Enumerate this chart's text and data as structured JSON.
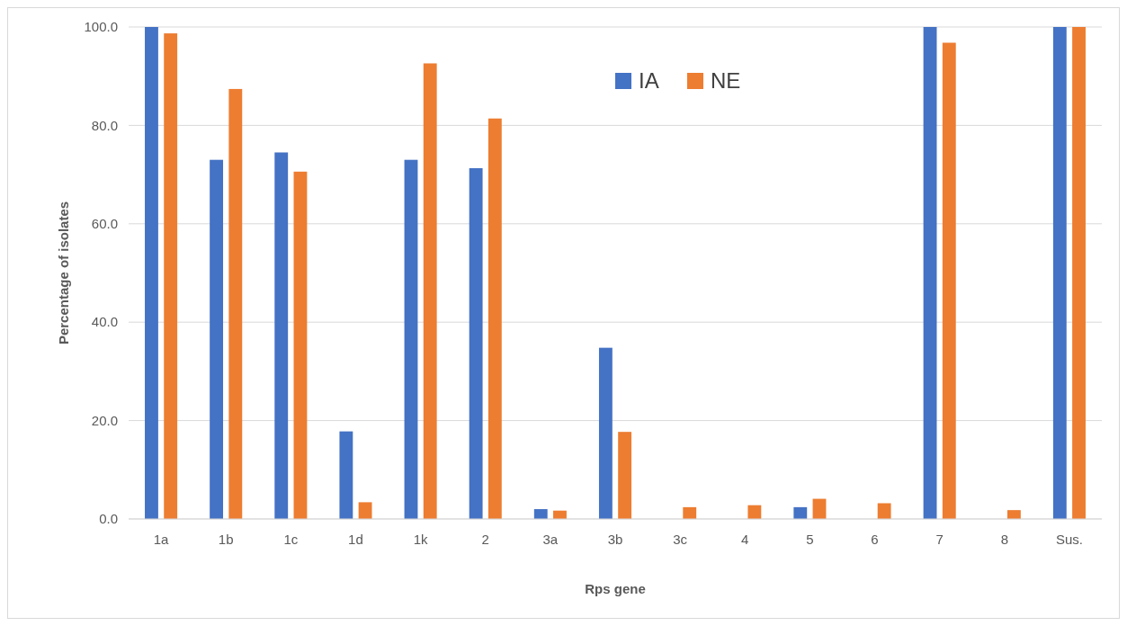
{
  "chart_data": {
    "type": "bar",
    "xlabel": "Rps gene",
    "ylabel": "Percentage of isolates",
    "categories": [
      "1a",
      "1b",
      "1c",
      "1d",
      "1k",
      "2",
      "3a",
      "3b",
      "3c",
      "4",
      "5",
      "6",
      "7",
      "8",
      "Sus."
    ],
    "series": [
      {
        "name": "IA",
        "color": "#4472c4",
        "values": [
          100,
          73.0,
          74.5,
          17.8,
          73.0,
          71.3,
          2.0,
          34.8,
          0,
          0,
          2.4,
          0,
          100,
          0,
          100
        ]
      },
      {
        "name": "NE",
        "color": "#ed7d31",
        "values": [
          98.7,
          87.4,
          70.6,
          3.4,
          92.6,
          81.4,
          1.7,
          17.7,
          2.4,
          2.8,
          4.1,
          3.2,
          96.8,
          1.8,
          100
        ]
      }
    ],
    "ylim": [
      0,
      100
    ],
    "yticks": [
      {
        "value": 0,
        "label": "0.0"
      },
      {
        "value": 20,
        "label": "20.0"
      },
      {
        "value": 40,
        "label": "40.0"
      },
      {
        "value": 60,
        "label": "60.0"
      },
      {
        "value": 80,
        "label": "80.0"
      },
      {
        "value": 100,
        "label": "100.0"
      }
    ],
    "grid": "y",
    "legend": "top"
  }
}
